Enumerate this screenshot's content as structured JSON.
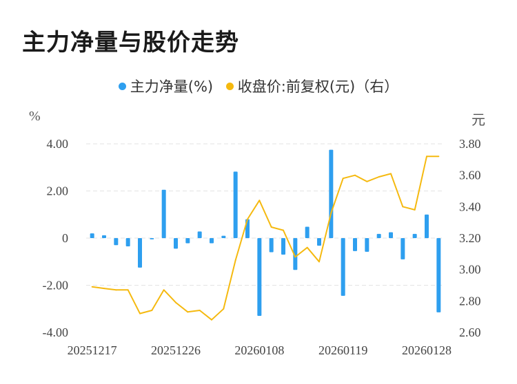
{
  "title": "主力净量与股价走势",
  "legend": {
    "item1": "主力净量(%)",
    "item2": "收盘价:前复权(元)（右）"
  },
  "colors": {
    "bar": "#2e9fef",
    "line": "#f5b90f",
    "grid": "#e3e3e3"
  },
  "chart_data": {
    "type": "bar",
    "title": "主力净量与股价走势",
    "left_axis": {
      "label": "%",
      "ylim": [
        -4,
        4
      ],
      "ticks": [
        {
          "v": 4,
          "label": "4.00"
        },
        {
          "v": 2,
          "label": "2.00"
        },
        {
          "v": 0,
          "label": "0"
        },
        {
          "v": -2,
          "label": "-2.00"
        },
        {
          "v": -4,
          "label": "-4.00"
        }
      ]
    },
    "right_axis": {
      "label": "元",
      "ylim": [
        2.6,
        3.8
      ],
      "ticks": [
        {
          "v": 3.8,
          "label": "3.80"
        },
        {
          "v": 3.6,
          "label": "3.60"
        },
        {
          "v": 3.4,
          "label": "3.40"
        },
        {
          "v": 3.2,
          "label": "3.20"
        },
        {
          "v": 3.0,
          "label": "3.00"
        },
        {
          "v": 2.8,
          "label": "2.80"
        },
        {
          "v": 2.6,
          "label": "2.60"
        }
      ]
    },
    "x_tick_labels": [
      {
        "index": 0,
        "label": "20251217"
      },
      {
        "index": 7,
        "label": "20251226"
      },
      {
        "index": 14,
        "label": "20260108"
      },
      {
        "index": 21,
        "label": "20260119"
      },
      {
        "index": 28,
        "label": "20260128"
      }
    ],
    "grid": true,
    "legend_position": "top",
    "series": [
      {
        "name": "主力净量(%)",
        "type": "bar",
        "axis": "left",
        "values": [
          0.2,
          0.12,
          -0.3,
          -0.35,
          -1.25,
          -0.05,
          2.05,
          -0.45,
          -0.22,
          0.28,
          -0.22,
          0.1,
          2.82,
          0.8,
          -3.3,
          -0.6,
          -0.7,
          -1.35,
          0.48,
          -0.32,
          3.75,
          -2.45,
          -0.55,
          -0.58,
          0.18,
          0.25,
          -0.9,
          0.18,
          1.0,
          -3.15
        ]
      },
      {
        "name": "收盘价:前复权(元)（右）",
        "type": "line",
        "axis": "right",
        "values": [
          2.89,
          2.88,
          2.87,
          2.87,
          2.72,
          2.74,
          2.87,
          2.79,
          2.73,
          2.74,
          2.68,
          2.75,
          3.06,
          3.32,
          3.44,
          3.27,
          3.25,
          3.08,
          3.14,
          3.05,
          3.36,
          3.58,
          3.6,
          3.56,
          3.59,
          3.61,
          3.4,
          3.38,
          3.72,
          3.72
        ]
      }
    ]
  }
}
